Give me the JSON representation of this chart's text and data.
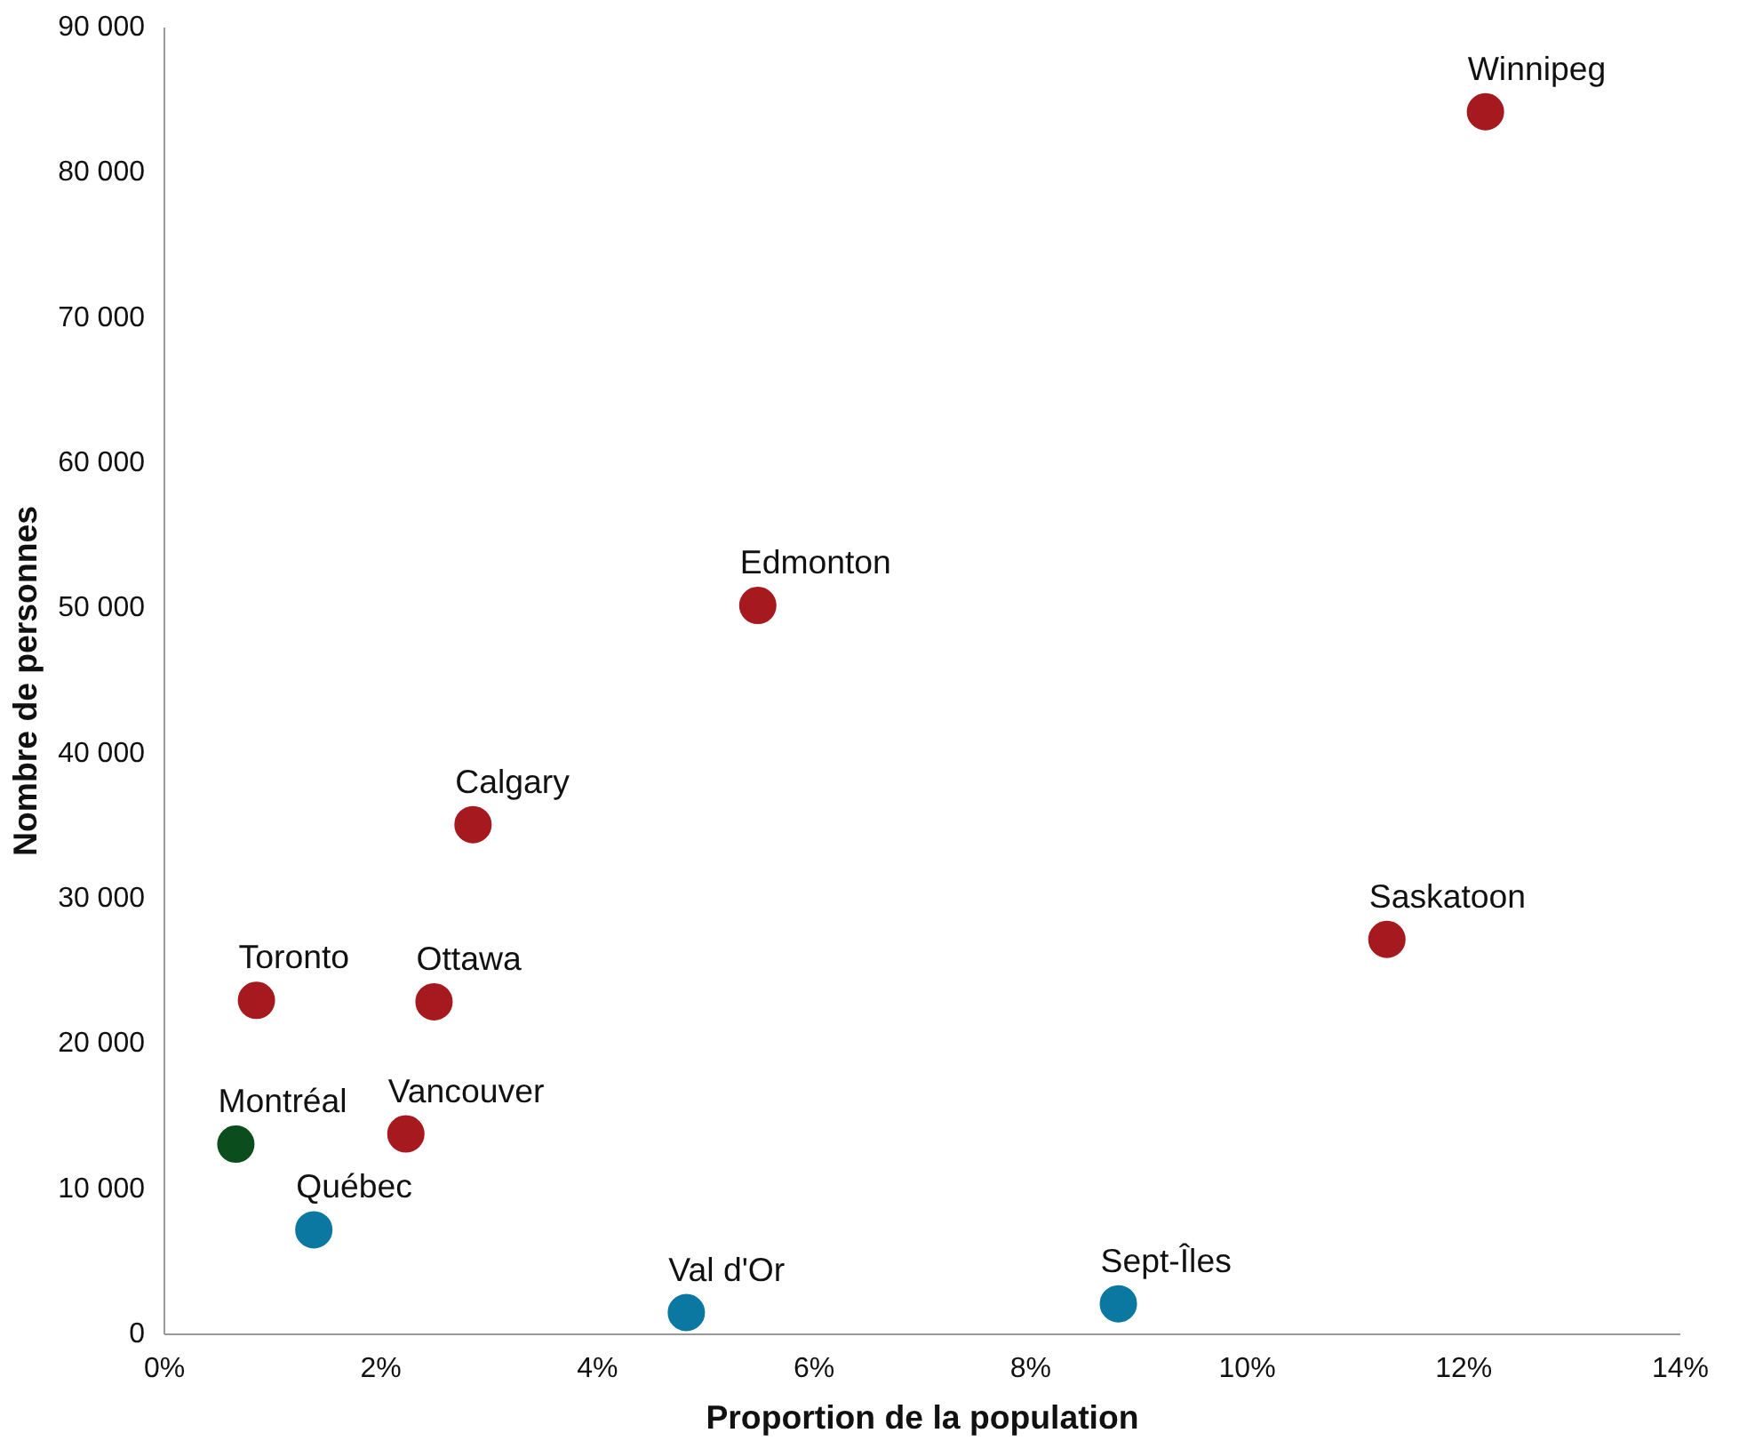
{
  "chart_data": {
    "type": "scatter",
    "xlabel": "Proportion de la population",
    "ylabel": "Nombre de personnes",
    "marker": "circle",
    "grid": false,
    "xlim": [
      0,
      14
    ],
    "xticks": [
      {
        "value": 0,
        "label": "0%"
      },
      {
        "value": 2,
        "label": "2%"
      },
      {
        "value": 4,
        "label": "4%"
      },
      {
        "value": 6,
        "label": "6%"
      },
      {
        "value": 8,
        "label": "8%"
      },
      {
        "value": 10,
        "label": "10%"
      },
      {
        "value": 12,
        "label": "12%"
      },
      {
        "value": 14,
        "label": "14%"
      }
    ],
    "ylim": [
      0,
      90000
    ],
    "yticks": [
      {
        "value": 0,
        "label": "0"
      },
      {
        "value": 10000,
        "label": "10 000"
      },
      {
        "value": 20000,
        "label": "20 000"
      },
      {
        "value": 30000,
        "label": "30 000"
      },
      {
        "value": 40000,
        "label": "40 000"
      },
      {
        "value": 50000,
        "label": "50 000"
      },
      {
        "value": 60000,
        "label": "60 000"
      },
      {
        "value": 70000,
        "label": "70 000"
      },
      {
        "value": 80000,
        "label": "80 000"
      },
      {
        "value": 90000,
        "label": "90 000"
      }
    ],
    "series": [
      {
        "color": "#a6191e",
        "x": [
          12.2,
          5.48,
          2.85,
          11.29,
          0.85,
          2.49,
          2.23
        ],
        "values": [
          84200,
          50200,
          35100,
          27200,
          23000,
          22900,
          13800
        ]
      },
      {
        "color": "#0b4d1c",
        "x": [
          0.66
        ],
        "values": [
          13100
        ]
      },
      {
        "color": "#0a78a0",
        "x": [
          1.38,
          4.82,
          8.81
        ],
        "values": [
          7200,
          1500,
          2100
        ]
      }
    ],
    "annotations": [
      {
        "text": "Winnipeg",
        "x": 12.2,
        "y": 84200
      },
      {
        "text": "Edmonton",
        "x": 5.48,
        "y": 50200
      },
      {
        "text": "Calgary",
        "x": 2.85,
        "y": 35100
      },
      {
        "text": "Saskatoon",
        "x": 11.29,
        "y": 27200
      },
      {
        "text": "Toronto",
        "x": 0.85,
        "y": 23000
      },
      {
        "text": "Ottawa",
        "x": 2.49,
        "y": 22900
      },
      {
        "text": "Vancouver",
        "x": 2.23,
        "y": 13800
      },
      {
        "text": "Montréal",
        "x": 0.66,
        "y": 13100
      },
      {
        "text": "Québec",
        "x": 1.38,
        "y": 7200
      },
      {
        "text": "Val d'Or",
        "x": 4.82,
        "y": 1500
      },
      {
        "text": "Sept-Îles",
        "x": 8.81,
        "y": 2100
      }
    ]
  }
}
